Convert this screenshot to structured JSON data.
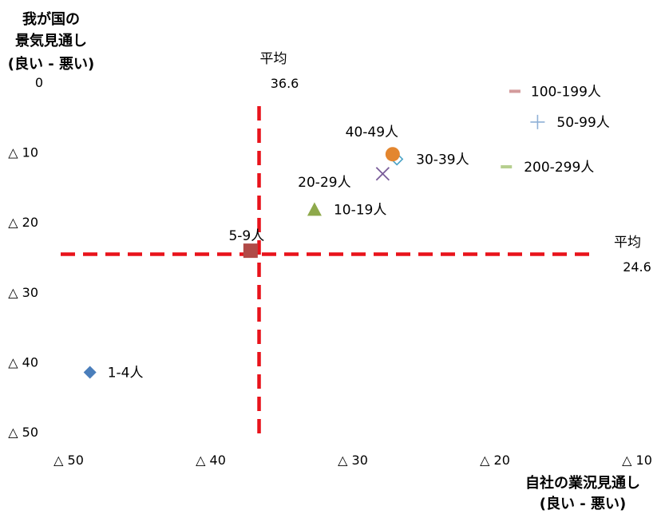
{
  "chart_data": {
    "type": "scatter",
    "y_title_lines": [
      "我が国の",
      "景気見通し",
      "(良い - 悪い)"
    ],
    "x_title_lines": [
      "自社の業況見通し",
      "(良い - 悪い)"
    ],
    "xlim": [
      -50,
      -10
    ],
    "ylim": [
      -50,
      0
    ],
    "x_ticks": [
      {
        "value": -50,
        "label": "△ 50"
      },
      {
        "value": -40,
        "label": "△ 40"
      },
      {
        "value": -30,
        "label": "△ 30"
      },
      {
        "value": -20,
        "label": "△ 20"
      },
      {
        "value": -10,
        "label": "△ 10"
      }
    ],
    "y_ticks": [
      {
        "value": 0,
        "label": "0"
      },
      {
        "value": -10,
        "label": "△ 10"
      },
      {
        "value": -20,
        "label": "△ 20"
      },
      {
        "value": -30,
        "label": "△ 30"
      },
      {
        "value": -40,
        "label": "△ 40"
      },
      {
        "value": -50,
        "label": "△ 50"
      }
    ],
    "grid": false,
    "reference_lines": [
      {
        "orientation": "vertical",
        "value": -36.6,
        "title": "平均",
        "value_label": "36.6",
        "color": "#e8131b"
      },
      {
        "orientation": "horizontal",
        "value": -24.6,
        "title": "平均",
        "value_label": "24.6",
        "color": "#e8131b"
      }
    ],
    "points": [
      {
        "label": "1-4人",
        "x": -48.5,
        "y": -41.5,
        "marker": "diamond",
        "color": "#4a7ebb"
      },
      {
        "label": "5-9人",
        "x": -37.2,
        "y": -24.1,
        "marker": "square",
        "color": "#b04a47"
      },
      {
        "label": "10-19人",
        "x": -32.7,
        "y": -18.2,
        "marker": "triangle",
        "color": "#8ea94b"
      },
      {
        "label": "20-29人",
        "x": -27.9,
        "y": -13.1,
        "marker": "x",
        "color": "#7a5d9a"
      },
      {
        "label": "30-39人",
        "x": -26.9,
        "y": -11.0,
        "marker": "diamond-open",
        "color": "#4aa3c6"
      },
      {
        "label": "40-49人",
        "x": -27.2,
        "y": -10.3,
        "marker": "circle",
        "color": "#e3862f"
      },
      {
        "label": "50-99人",
        "x": -17.0,
        "y": -5.7,
        "marker": "plus",
        "color": "#8fb0d6"
      },
      {
        "label": "100-199人",
        "x": -18.6,
        "y": -1.3,
        "marker": "dash",
        "color": "#d39a9b"
      },
      {
        "label": "200-299人",
        "x": -19.2,
        "y": -12.1,
        "marker": "dash",
        "color": "#b6cf8f"
      }
    ]
  }
}
